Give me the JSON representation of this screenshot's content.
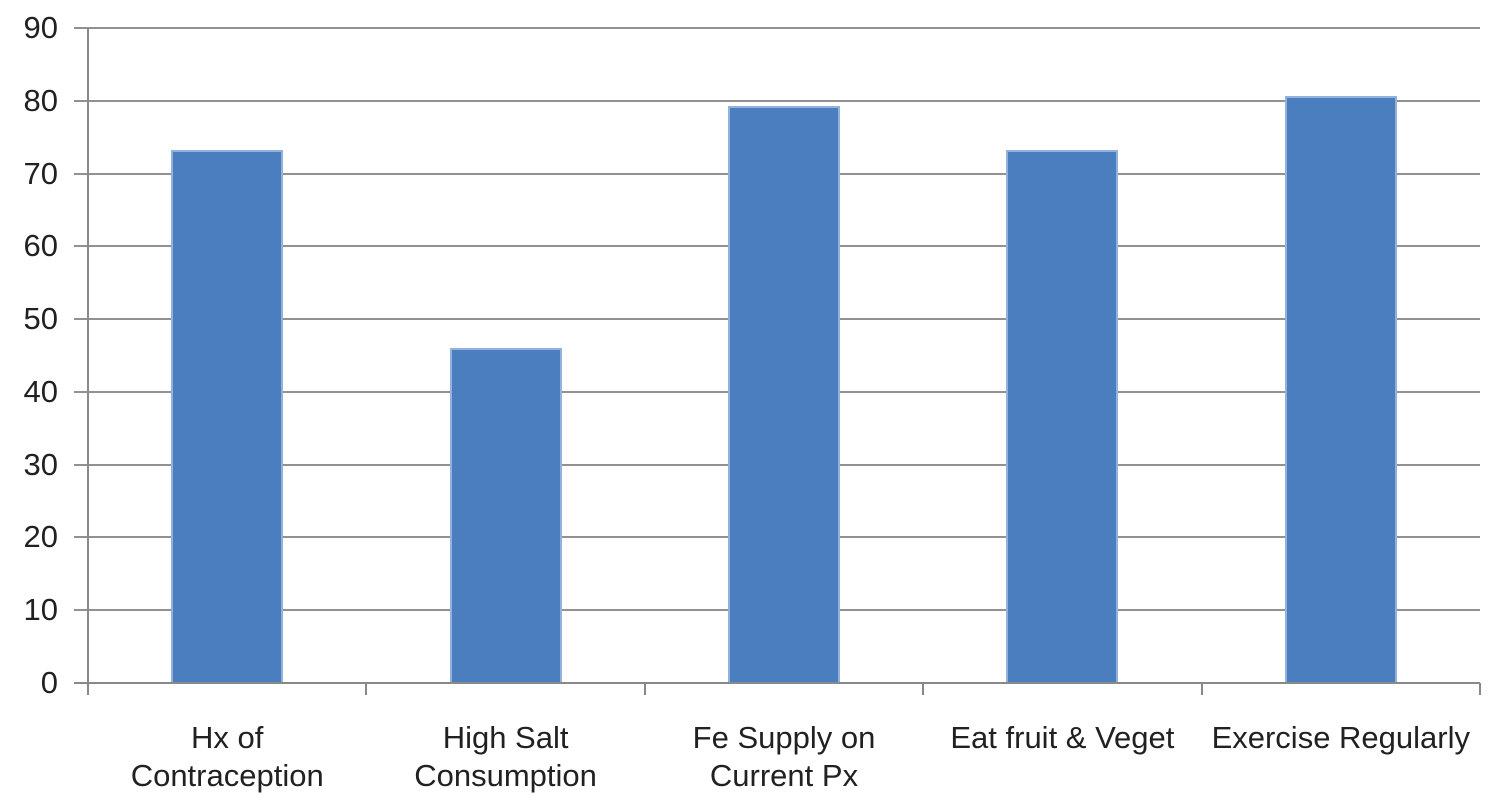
{
  "chart_data": {
    "type": "bar",
    "title": "",
    "xlabel": "",
    "ylabel": "",
    "categories": [
      "Hx of\nContraception",
      "High Salt\nConsumption",
      "Fe Supply on\nCurrent Px",
      "Eat fruit & Veget",
      "Exercise Regularly"
    ],
    "values": [
      73.3,
      46,
      79.3,
      73.3,
      80.7
    ],
    "ylim": [
      0,
      90
    ],
    "ytick_step": 10,
    "ytick_labels": [
      "0",
      "10",
      "20",
      "30",
      "40",
      "50",
      "60",
      "70",
      "80",
      "90"
    ],
    "grid": true,
    "legend": false,
    "colors": {
      "bar_fill": "#4a7ebe",
      "bar_edge": "#93b1da",
      "gridline": "#919191",
      "axis": "#898989",
      "label_text": "#212121",
      "background": "#ffffff"
    }
  }
}
